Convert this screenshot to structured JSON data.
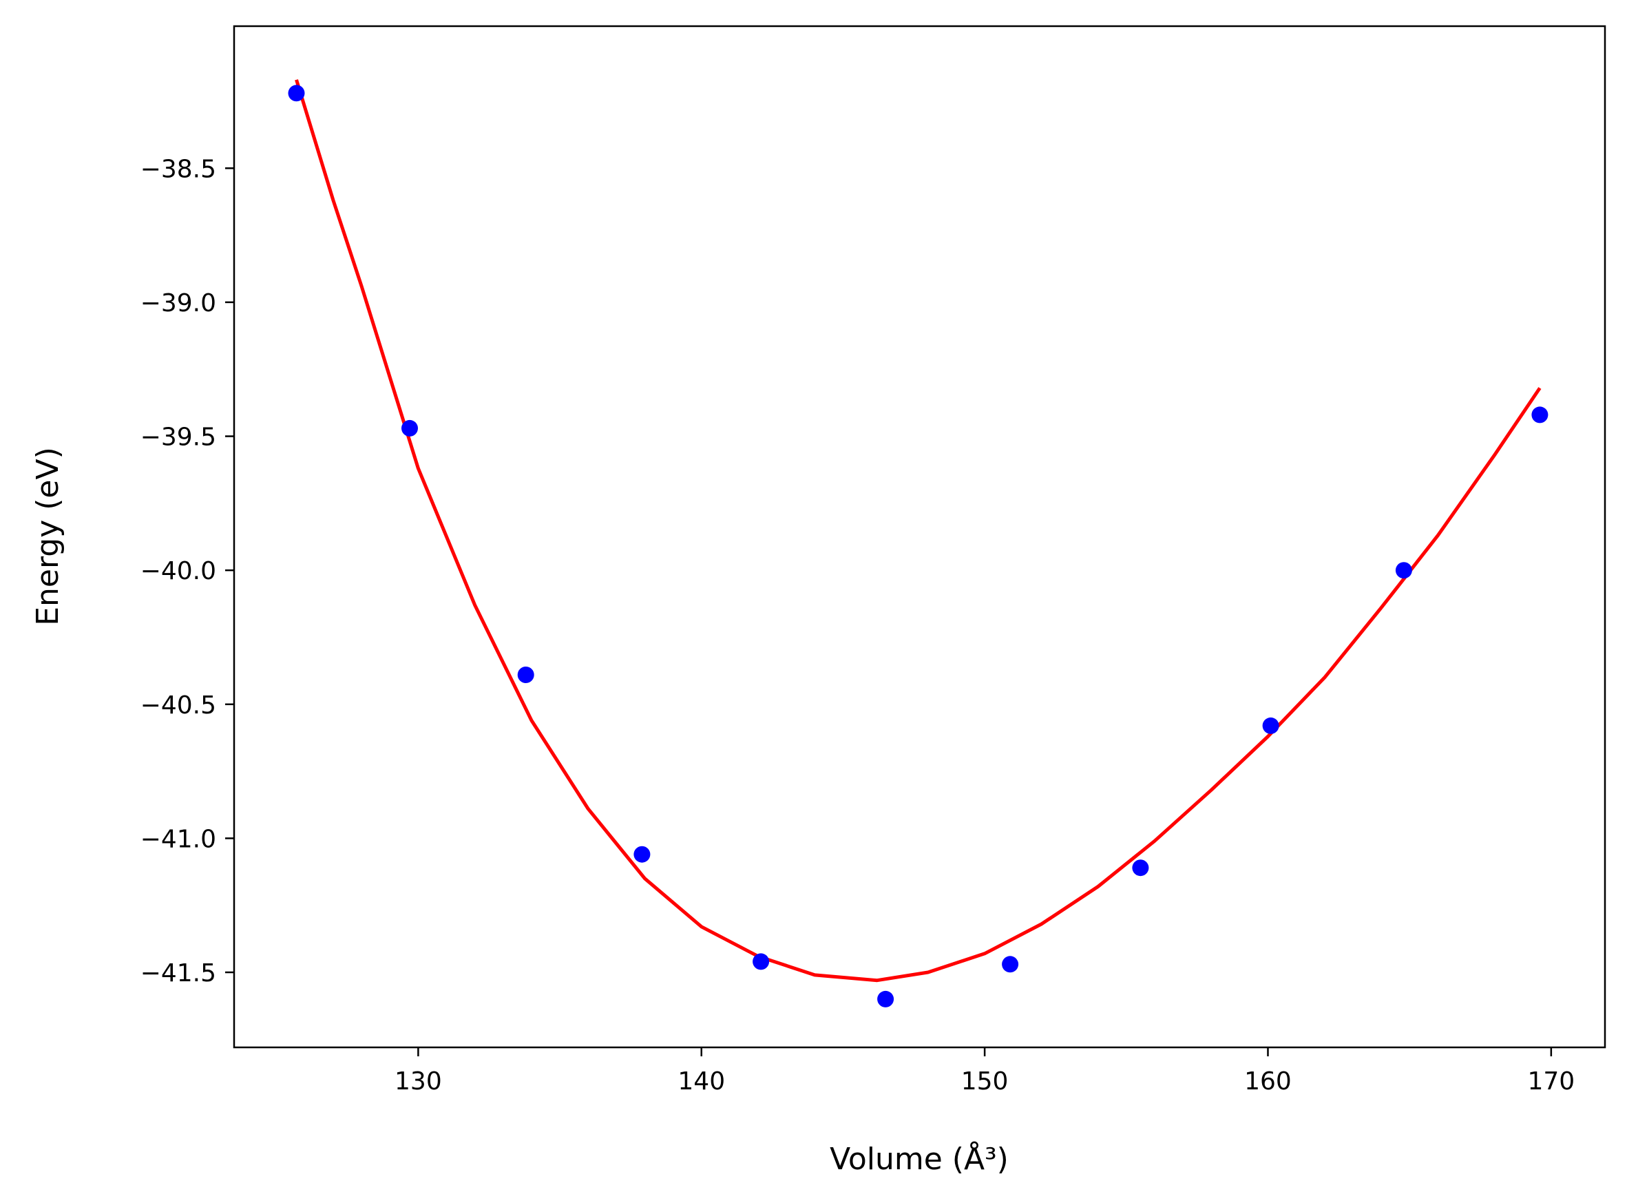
{
  "chart_data": {
    "type": "scatter",
    "xlabel": "Volume (Å³)",
    "ylabel": "Energy (eV)",
    "xlim": [
      123.5,
      171.9
    ],
    "ylim": [
      -41.78,
      -37.97
    ],
    "xticks": [
      130,
      140,
      150,
      160,
      170
    ],
    "yticks": [
      -38.5,
      -39.0,
      -39.5,
      -40.0,
      -40.5,
      -41.0,
      -41.5
    ],
    "xtick_labels": [
      "130",
      "140",
      "150",
      "160",
      "170"
    ],
    "ytick_labels": [
      "−38.5",
      "−39.0",
      "−39.5",
      "−40.0",
      "−40.5",
      "−41.0",
      "−41.5"
    ],
    "grid": false,
    "series": [
      {
        "kind": "points",
        "color": "#0000ff",
        "x": [
          125.7,
          129.7,
          133.8,
          137.9,
          142.1,
          146.5,
          150.9,
          155.5,
          160.1,
          164.8,
          169.6
        ],
        "y": [
          -38.22,
          -39.47,
          -40.39,
          -41.06,
          -41.46,
          -41.6,
          -41.47,
          -41.11,
          -40.58,
          -40.0,
          -39.42
        ]
      },
      {
        "kind": "fit-line",
        "color": "#ff0000",
        "x": [
          125.7,
          127.0,
          128.0,
          130.0,
          132.0,
          134.0,
          136.0,
          138.0,
          140.0,
          142.0,
          144.0,
          146.2,
          148.0,
          150.0,
          152.0,
          154.0,
          156.0,
          158.0,
          160.0,
          162.0,
          164.0,
          166.0,
          168.0,
          169.6
        ],
        "y": [
          -38.17,
          -38.62,
          -38.94,
          -39.62,
          -40.13,
          -40.56,
          -40.89,
          -41.15,
          -41.33,
          -41.44,
          -41.51,
          -41.53,
          -41.5,
          -41.43,
          -41.32,
          -41.18,
          -41.01,
          -40.82,
          -40.62,
          -40.4,
          -40.14,
          -39.87,
          -39.57,
          -39.32
        ]
      }
    ]
  }
}
